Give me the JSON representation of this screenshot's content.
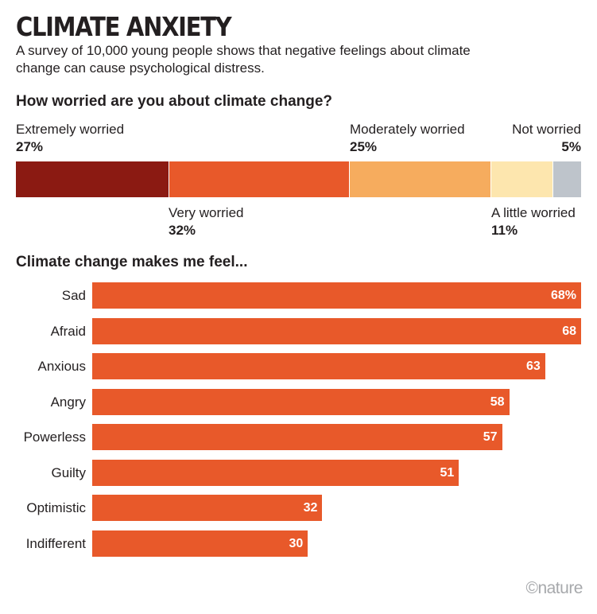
{
  "title": "CLIMATE ANXIETY",
  "subtitle": "A survey of 10,000 young people shows that negative feelings about climate change can cause psychological distress.",
  "credit": "©nature",
  "chart_data": [
    {
      "type": "bar",
      "orientation": "horizontal-stacked",
      "title": "How worried are you about climate change?",
      "unit": "%",
      "categories": [
        "Extremely worried",
        "Very worried",
        "Moderately worried",
        "A little worried",
        "Not worried"
      ],
      "values": [
        27,
        32,
        25,
        11,
        5
      ],
      "value_labels": [
        "27%",
        "32%",
        "25%",
        "11%",
        "5%"
      ],
      "colors": [
        "#8b1a12",
        "#e8592a",
        "#f6ac5e",
        "#fde6ae",
        "#bec4cb"
      ]
    },
    {
      "type": "bar",
      "orientation": "horizontal",
      "title": "Climate change makes me feel...",
      "unit": "%",
      "xlim": [
        0,
        68
      ],
      "categories": [
        "Sad",
        "Afraid",
        "Anxious",
        "Angry",
        "Powerless",
        "Guilty",
        "Optimistic",
        "Indifferent"
      ],
      "values": [
        68,
        68,
        63,
        58,
        57,
        51,
        32,
        30
      ],
      "value_labels": [
        "68%",
        "68",
        "63",
        "58",
        "57",
        "51",
        "32",
        "30"
      ],
      "color": "#e8592a"
    }
  ]
}
